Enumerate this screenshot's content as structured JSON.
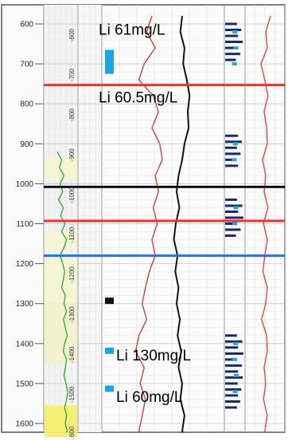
{
  "chart_data": {
    "type": "line",
    "title": "",
    "xlabel": "",
    "ylabel": "",
    "ylim": [
      580,
      1640
    ],
    "depth_ticks": [
      600,
      700,
      800,
      900,
      1000,
      1100,
      1200,
      1300,
      1400,
      1500,
      1600
    ],
    "depth_tick_labels": [
      "600",
      "700",
      "800",
      "900",
      "1000",
      "1100",
      "1200",
      "1300",
      "1400",
      "1500",
      "1600"
    ],
    "inner_depth_labels": [
      {
        "depth": 600,
        "text": "-600"
      },
      {
        "depth": 700,
        "text": "-700"
      },
      {
        "depth": 800,
        "text": "-800"
      },
      {
        "depth": 900,
        "text": "-900"
      },
      {
        "depth": 1000,
        "text": "-1000"
      },
      {
        "depth": 1100,
        "text": "-1100"
      },
      {
        "depth": 1200,
        "text": "-1200"
      },
      {
        "depth": 1300,
        "text": "-1300"
      },
      {
        "depth": 1400,
        "text": "-1400"
      },
      {
        "depth": 1500,
        "text": "-1500"
      },
      {
        "depth": 1600,
        "text": "-1600"
      }
    ],
    "tops": [
      {
        "depth": 753,
        "color": "#e8322f"
      },
      {
        "depth": 1008,
        "color": "#111111"
      },
      {
        "depth": 1093,
        "color": "#e8322f"
      },
      {
        "depth": 1180,
        "color": "#2a6fe0"
      }
    ],
    "annotations": [
      {
        "text": "Li 61mg/L",
        "depth": 615
      },
      {
        "text": "Li 60.5mg/L",
        "depth": 785
      },
      {
        "text": "Li 130mg/L",
        "depth": 1430
      },
      {
        "text": "Li 60mg/L",
        "depth": 1534
      }
    ],
    "sample_markers": [
      {
        "depth_top": 665,
        "depth_bottom": 725,
        "color": "#1aa6e6"
      },
      {
        "depth_top": 1285,
        "depth_bottom": 1300,
        "color": "#111111"
      },
      {
        "depth_top": 1410,
        "depth_bottom": 1420,
        "color": "#1aa6e6"
      },
      {
        "depth_top": 1505,
        "depth_bottom": 1520,
        "color": "#1aa6e6"
      }
    ],
    "lithology_intervals": [
      {
        "depth_top": 935,
        "depth_bottom": 990,
        "color": "#f6f6d0"
      },
      {
        "depth_top": 1120,
        "depth_bottom": 1165,
        "color": "#f6f6d0"
      },
      {
        "depth_top": 1190,
        "depth_bottom": 1300,
        "color": "#f6f6d0"
      },
      {
        "depth_top": 1300,
        "depth_bottom": 1450,
        "color": "#f4f2c8"
      },
      {
        "depth_top": 1555,
        "depth_bottom": 1640,
        "color": "#f7f06a"
      }
    ],
    "series": [
      {
        "color": "#1fae3a",
        "depth": [
          920,
          940,
          960,
          980,
          1000,
          1020,
          1040,
          1060,
          1080,
          1100,
          1120,
          1140,
          1160,
          1180,
          1200,
          1220,
          1240,
          1260,
          1280,
          1300,
          1320,
          1340,
          1360,
          1380,
          1400,
          1420,
          1440,
          1460,
          1480,
          1500,
          1520,
          1540,
          1560,
          1580,
          1600,
          1620,
          1640
        ],
        "value": [
          0.42,
          0.55,
          0.48,
          0.62,
          0.5,
          0.58,
          0.45,
          0.6,
          0.52,
          0.65,
          0.55,
          0.7,
          0.62,
          0.5,
          0.58,
          0.64,
          0.6,
          0.55,
          0.66,
          0.62,
          0.7,
          0.6,
          0.66,
          0.72,
          0.64,
          0.6,
          0.7,
          0.66,
          0.62,
          0.68,
          0.74,
          0.7,
          0.64,
          0.7,
          0.66,
          0.72,
          0.68
        ]
      },
      {
        "color": "#d93030",
        "depth": [
          580,
          620,
          660,
          700,
          740,
          780,
          820,
          860,
          900,
          940,
          980,
          1020,
          1060,
          1100,
          1140,
          1180,
          1220,
          1260,
          1300,
          1340,
          1380,
          1420,
          1460,
          1500,
          1540,
          1580,
          1620,
          1640
        ],
        "value": [
          0.5,
          0.42,
          0.55,
          0.38,
          0.3,
          0.52,
          0.6,
          0.5,
          0.62,
          0.66,
          0.55,
          0.6,
          0.52,
          0.58,
          0.5,
          0.55,
          0.46,
          0.4,
          0.35,
          0.42,
          0.3,
          0.25,
          0.38,
          0.32,
          0.4,
          0.35,
          0.3,
          0.33
        ]
      },
      {
        "color": "#111111",
        "depth": [
          580,
          620,
          660,
          700,
          740,
          780,
          820,
          860,
          900,
          940,
          980,
          1020,
          1060,
          1100,
          1140,
          1180,
          1220,
          1260,
          1300,
          1340,
          1380,
          1420,
          1460,
          1500,
          1540,
          1580,
          1620,
          1640
        ],
        "value": [
          0.5,
          0.46,
          0.55,
          0.52,
          0.6,
          0.66,
          0.62,
          0.64,
          0.55,
          0.5,
          0.42,
          0.38,
          0.44,
          0.36,
          0.32,
          0.4,
          0.35,
          0.42,
          0.38,
          0.45,
          0.4,
          0.48,
          0.42,
          0.5,
          0.46,
          0.55,
          0.5,
          0.52
        ]
      },
      {
        "color": "#e23b3b",
        "depth": [
          580,
          620,
          660,
          700,
          740,
          780,
          820,
          860,
          900,
          940,
          980,
          1020,
          1060,
          1100,
          1140,
          1180,
          1220,
          1260,
          1300,
          1340,
          1380,
          1420,
          1460,
          1500,
          1540,
          1580,
          1620,
          1640
        ],
        "value": [
          0.7,
          0.55,
          0.6,
          0.4,
          0.52,
          0.62,
          0.5,
          0.58,
          0.6,
          0.45,
          0.55,
          0.5,
          0.62,
          0.48,
          0.6,
          0.52,
          0.46,
          0.6,
          0.55,
          0.42,
          0.58,
          0.6,
          0.5,
          0.55,
          0.48,
          0.6,
          0.52,
          0.56
        ]
      },
      {
        "color": "#1a2a66",
        "depth": [
          600,
          615,
          630,
          645,
          660,
          675,
          690,
          880,
          895,
          910,
          925,
          940,
          955,
          1040,
          1055,
          1070,
          1085,
          1100,
          1115,
          1130,
          1380,
          1395,
          1410,
          1425,
          1440,
          1455,
          1470,
          1485,
          1500,
          1515,
          1530,
          1545,
          1560
        ],
        "value": [
          0.55,
          0.75,
          0.6,
          0.82,
          0.58,
          0.7,
          0.5,
          0.6,
          0.78,
          0.55,
          0.72,
          0.5,
          0.6,
          0.55,
          0.8,
          0.6,
          0.85,
          0.55,
          0.72,
          0.5,
          0.55,
          0.8,
          0.6,
          0.85,
          0.55,
          0.78,
          0.6,
          0.82,
          0.58,
          0.75,
          0.6,
          0.7,
          0.55
        ]
      },
      {
        "color": "#22a7e0",
        "depth": [
          620,
          660,
          700,
          900,
          940,
          1060,
          1100,
          1400,
          1440,
          1480,
          1520
        ],
        "value": [
          0.62,
          0.7,
          0.6,
          0.66,
          0.58,
          0.7,
          0.62,
          0.68,
          0.6,
          0.72,
          0.64
        ]
      }
    ]
  }
}
